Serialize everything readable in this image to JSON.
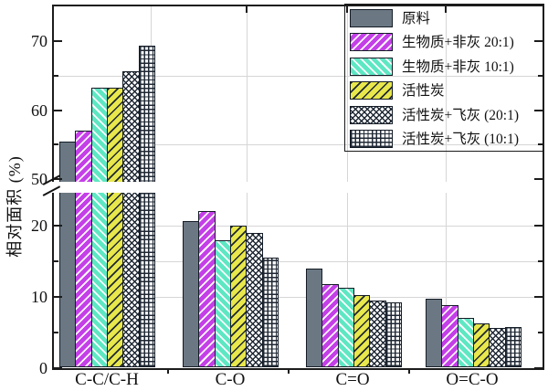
{
  "title_none": "",
  "colors": {
    "gray": "#6b7883",
    "magenta": "#c43fe8",
    "cyan": "#5ee7c3",
    "yellow": "#e8e74b",
    "pattern_dark": "#1f2834",
    "gridline": "#d6d6d6",
    "frame": "#1c1c1c"
  },
  "chart_data": {
    "type": "bar",
    "title": "",
    "xlabel": "",
    "ylabel": "相对面积 (%)",
    "categories": [
      "C-C/C-H",
      "C-O",
      "C=O",
      "O=C-O"
    ],
    "series": [
      {
        "name": "原料",
        "pattern": "solid-gray",
        "values": [
          55.5,
          20.7,
          14.0,
          9.7
        ]
      },
      {
        "name": "生物质+非灰  20:1)",
        "pattern": "forward-hatch-white-on-magenta",
        "values": [
          57.0,
          22.0,
          11.8,
          8.8
        ]
      },
      {
        "name": "生物质+非灰  10:1)",
        "pattern": "back-hatch-white-on-cyan",
        "values": [
          63.2,
          18.0,
          11.3,
          7.0
        ]
      },
      {
        "name": "活性炭",
        "pattern": "forward-hatch-dark-on-yellow",
        "values": [
          63.2,
          20.0,
          10.3,
          6.3
        ]
      },
      {
        "name": "活性炭+飞灰 (20:1)",
        "pattern": "diagonal-crosshatch-dark",
        "values": [
          65.7,
          19.0,
          9.5,
          5.6
        ]
      },
      {
        "name": "活性炭+飞灰 (10:1)",
        "pattern": "square-grid-dark",
        "values": [
          69.3,
          15.5,
          9.3,
          5.8
        ]
      }
    ],
    "y_axis": {
      "broken": true,
      "lower_segment": {
        "range": [
          0,
          24.6
        ],
        "major_ticks": [
          0,
          10,
          20
        ],
        "minor_ticks": [
          5,
          15
        ]
      },
      "upper_segment": {
        "range": [
          49.5,
          75
        ],
        "major_ticks": [
          50,
          60,
          70
        ],
        "minor_ticks": [
          55,
          65
        ]
      },
      "gridline_values": [
        10,
        15,
        20,
        55,
        65
      ]
    },
    "legend_position": "top-right",
    "grid": true
  }
}
